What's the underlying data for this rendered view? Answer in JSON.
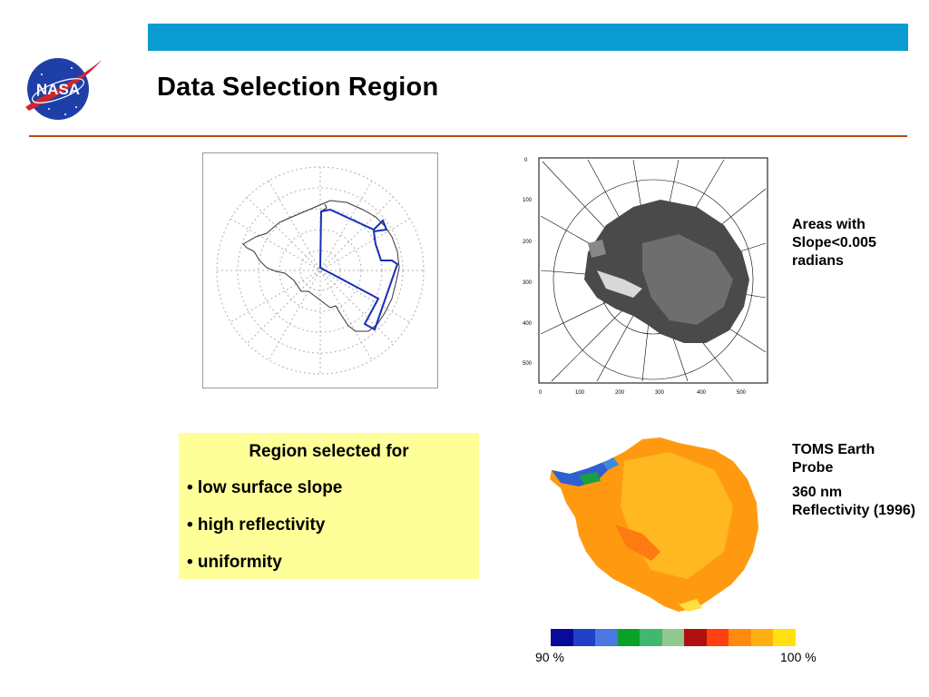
{
  "slide": {
    "title": "Data Selection Region"
  },
  "logo": {
    "text": "NASA",
    "colors": {
      "disc": "#1f3fa8",
      "swoosh": "#d2242c"
    }
  },
  "captions": {
    "slope": [
      "Areas with",
      "Slope<0.005",
      "radians"
    ],
    "toms_line1": "TOMS Earth Probe",
    "toms_line2": "360 nm Reflectivity (1996)"
  },
  "selection_box": {
    "heading": "Region selected for",
    "bullets": [
      "• low surface slope",
      "• high reflectivity",
      "• uniformity"
    ]
  },
  "slope_map": {
    "x_ticks": [
      "0",
      "100",
      "200",
      "300",
      "400",
      "500"
    ],
    "y_ticks": [
      "0",
      "100",
      "200",
      "300",
      "400",
      "500"
    ]
  },
  "colorbar": {
    "min_label": "90 %",
    "max_label": "100 %",
    "colors": [
      "#0a0a9a",
      "#2040c8",
      "#4a78e0",
      "#0aa02a",
      "#40b870",
      "#90c890",
      "#b01010",
      "#ff4010",
      "#ff8a10",
      "#ffb010",
      "#ffe010"
    ]
  },
  "colors": {
    "header_bar": "#0a9cd0",
    "divider": "#b04a14",
    "selection_outline": "#1a2eb8",
    "box_background": "#ffff99"
  }
}
